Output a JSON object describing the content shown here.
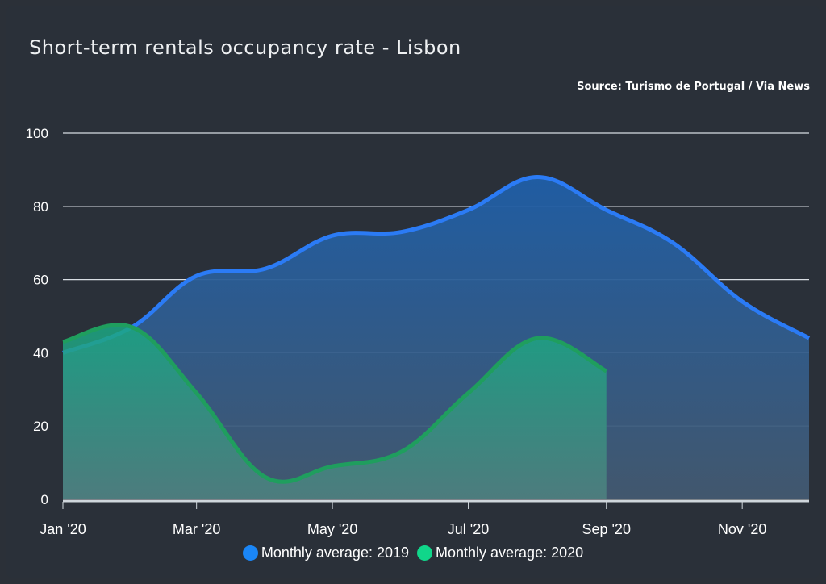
{
  "chart_data": {
    "type": "area",
    "title": "Short-term rentals occupancy rate - Lisbon",
    "subtitle": "Source: Turismo de Portugal / Via News",
    "xlabel": "",
    "ylabel": "",
    "ylim": [
      0,
      100
    ],
    "yticks": [
      "0",
      "20",
      "40",
      "60",
      "80",
      "100"
    ],
    "xticks": [
      {
        "date": "2020-01-01",
        "label": "Jan '20"
      },
      {
        "date": "2020-03-01",
        "label": "Mar '20"
      },
      {
        "date": "2020-05-01",
        "label": "May '20"
      },
      {
        "date": "2020-07-01",
        "label": "Jul '20"
      },
      {
        "date": "2020-09-01",
        "label": "Sep '20"
      },
      {
        "date": "2020-11-01",
        "label": "Nov '20"
      }
    ],
    "grid": true,
    "legend_position": "bottom",
    "series": [
      {
        "name": "Monthly average: 2019",
        "color": "#2b7bf5",
        "x": [
          "2020-01-01",
          "2020-02-01",
          "2020-03-01",
          "2020-04-01",
          "2020-05-01",
          "2020-06-01",
          "2020-07-01",
          "2020-08-01",
          "2020-09-01",
          "2020-10-01",
          "2020-11-01",
          "2020-12-01"
        ],
        "values": [
          40,
          47,
          61,
          63,
          72,
          73,
          79,
          88,
          79,
          70,
          54,
          44
        ]
      },
      {
        "name": "Monthly average: 2020",
        "color": "#10d68a",
        "x": [
          "2020-01-01",
          "2020-02-01",
          "2020-03-01",
          "2020-04-01",
          "2020-05-01",
          "2020-06-01",
          "2020-07-01",
          "2020-08-01",
          "2020-09-01"
        ],
        "values": [
          43,
          47,
          29,
          6,
          9,
          13,
          29,
          44,
          35
        ]
      }
    ]
  }
}
